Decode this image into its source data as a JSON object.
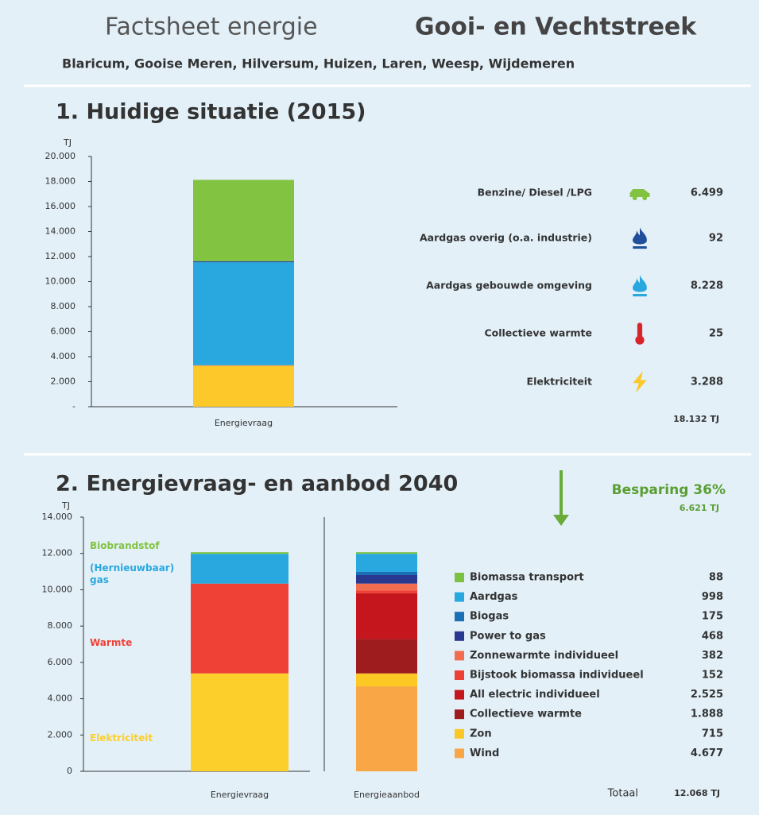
{
  "header": {
    "title_left": "Factsheet energie",
    "title_right": "Gooi- en Vechtstreek",
    "subtitle": "Blaricum, Gooise Meren, Hilversum, Huizen, Laren, Weesp, Wijdemeren"
  },
  "chart_data": [
    {
      "type": "bar",
      "stacked": true,
      "title": "1. Huidige situatie (2015)",
      "y_unit": "TJ",
      "categories": [
        "Energievraag"
      ],
      "series": [
        {
          "name": "Elektriciteit",
          "color": "#fcc82a",
          "values": [
            3288
          ],
          "value_labels": [
            "3.288"
          ]
        },
        {
          "name": "Collectieve warmte",
          "color": "#d7262a",
          "values": [
            25
          ],
          "value_labels": [
            "25"
          ]
        },
        {
          "name": "Aardgas gebouwde omgeving",
          "color": "#29a8e0",
          "values": [
            8228
          ],
          "value_labels": [
            "8.228"
          ]
        },
        {
          "name": "Aardgas overig (o.a. industrie)",
          "color": "#1f4e9a",
          "values": [
            92
          ],
          "value_labels": [
            "92"
          ]
        },
        {
          "name": "Benzine/ Diesel /LPG",
          "color": "#82c341",
          "values": [
            6499
          ],
          "value_labels": [
            "6.499"
          ]
        }
      ],
      "ylim": [
        0,
        20000
      ],
      "yticks": [
        {
          "value": 0,
          "label": "-"
        },
        {
          "value": 2000,
          "label": "2.000"
        },
        {
          "value": 4000,
          "label": "4.000"
        },
        {
          "value": 6000,
          "label": "6.000"
        },
        {
          "value": 8000,
          "label": "8.000"
        },
        {
          "value": 10000,
          "label": "10.000"
        },
        {
          "value": 12000,
          "label": "12.000"
        },
        {
          "value": 14000,
          "label": "14.000"
        },
        {
          "value": 16000,
          "label": "16.000"
        },
        {
          "value": 18000,
          "label": "18.000"
        },
        {
          "value": 20000,
          "label": "20.000"
        }
      ],
      "total_label": "18.132 TJ"
    },
    {
      "type": "bar",
      "stacked": true,
      "title": "2. Energievraag- en aanbod 2040",
      "y_unit": "TJ",
      "categories": [
        "Energievraag",
        "Energieaanbod"
      ],
      "series": [
        {
          "name": "Elektriciteit",
          "color": "#fccf2a",
          "values": [
            5392,
            null
          ]
        },
        {
          "name": "Warmte",
          "color": "#ef4136",
          "values": [
            4947,
            null
          ]
        },
        {
          "name": "(Hernieuwbaar) gas",
          "color": "#29a8e0",
          "values": [
            1641,
            null
          ]
        },
        {
          "name": "Biobrandstof",
          "color": "#82c341",
          "values": [
            88,
            null
          ]
        },
        {
          "name": "Wind",
          "color": "#f9a646",
          "values": [
            null,
            4677
          ],
          "value_labels": [
            null,
            "4.677"
          ]
        },
        {
          "name": "Zon",
          "color": "#fcc823",
          "values": [
            null,
            715
          ],
          "value_labels": [
            null,
            "715"
          ]
        },
        {
          "name": "Collectieve warmte",
          "color": "#9e1b1e",
          "values": [
            null,
            1888
          ],
          "value_labels": [
            null,
            "1.888"
          ]
        },
        {
          "name": "All electric individueel",
          "color": "#c4161c",
          "values": [
            null,
            2525
          ],
          "value_labels": [
            null,
            "2.525"
          ]
        },
        {
          "name": "Bijstook biomassa individueel",
          "color": "#ee3e36",
          "values": [
            null,
            152
          ],
          "value_labels": [
            null,
            "152"
          ]
        },
        {
          "name": "Zonnewarmte individueel",
          "color": "#f26d4f",
          "values": [
            null,
            382
          ],
          "value_labels": [
            null,
            "382"
          ]
        },
        {
          "name": "Power to gas",
          "color": "#2a3990",
          "values": [
            null,
            468
          ],
          "value_labels": [
            null,
            "468"
          ]
        },
        {
          "name": "Biogas",
          "color": "#1a6fb5",
          "values": [
            null,
            175
          ],
          "value_labels": [
            null,
            "175"
          ]
        },
        {
          "name": "Aardgas",
          "color": "#29a8e0",
          "values": [
            null,
            998
          ],
          "value_labels": [
            null,
            "998"
          ]
        },
        {
          "name": "Biomassa transport",
          "color": "#7dc142",
          "values": [
            null,
            88
          ],
          "value_labels": [
            null,
            "88"
          ]
        }
      ],
      "ylim": [
        0,
        14000
      ],
      "yticks": [
        0,
        {
          "value": 2000,
          "label": "2.000"
        },
        {
          "value": 4000,
          "label": "4.000"
        },
        {
          "value": 6000,
          "label": "6.000"
        },
        {
          "value": 8000,
          "label": "8.000"
        },
        {
          "value": 10000,
          "label": "10.000"
        },
        {
          "value": 12000,
          "label": "12.000"
        },
        {
          "value": 14000,
          "label": "14.000"
        }
      ],
      "annotations": {
        "saving": "Besparing 36%",
        "saving_amount": "6.621 TJ",
        "total_text": "Totaal",
        "total_label": "12.068 TJ"
      }
    }
  ]
}
